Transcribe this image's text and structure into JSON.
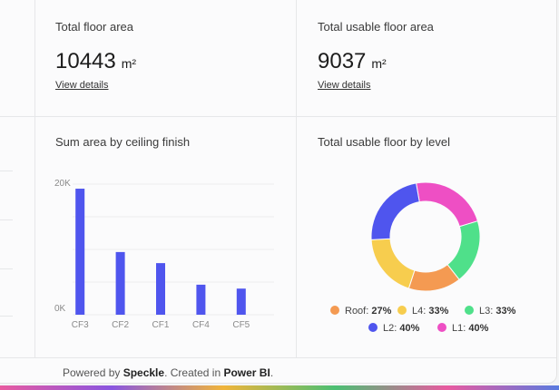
{
  "kpis": [
    {
      "label": "Total floor area",
      "value": "10443",
      "unit": "m²",
      "link": "View details"
    },
    {
      "label": "Total usable floor area",
      "value": "9037",
      "unit": "m²",
      "link": "View details"
    }
  ],
  "footer": {
    "prefix": "Powered by ",
    "brand": "Speckle",
    "middle": ". Created in ",
    "tool": "Power BI",
    "suffix": "."
  },
  "colors": {
    "bar": "#4f55ee",
    "roof": "#f49a52",
    "l4": "#f7cd4e",
    "l3": "#4fe08a",
    "l2": "#4f55ee",
    "l1": "#ee4fc4"
  },
  "chart_data": [
    {
      "type": "bar",
      "title": "Sum area by ceiling finish",
      "categories": [
        "CF3",
        "CF2",
        "CF1",
        "CF4",
        "CF5"
      ],
      "values": [
        19300,
        9600,
        7900,
        4600,
        4000
      ],
      "ylim": [
        0,
        20000
      ],
      "ytick_labels": [
        "0K",
        "20K"
      ],
      "grid": true
    },
    {
      "type": "pie",
      "variant": "donut",
      "title": "Total usable floor by level",
      "slices": [
        {
          "label": "L1",
          "value": 40,
          "display": "40%",
          "color": "#ee4fc4"
        },
        {
          "label": "L3",
          "value": 33,
          "display": "33%",
          "color": "#4fe08a"
        },
        {
          "label": "Roof",
          "value": 27,
          "display": "27%",
          "color": "#f49a52"
        },
        {
          "label": "L4",
          "value": 33,
          "display": "33%",
          "color": "#f7cd4e"
        },
        {
          "label": "L2",
          "value": 40,
          "display": "40%",
          "color": "#4f55ee"
        }
      ],
      "legend": [
        {
          "label": "Roof",
          "display": "27%",
          "color": "#f49a52"
        },
        {
          "label": "L4",
          "display": "33%",
          "color": "#f7cd4e"
        },
        {
          "label": "L3",
          "display": "33%",
          "color": "#4fe08a"
        },
        {
          "label": "L2",
          "display": "40%",
          "color": "#4f55ee"
        },
        {
          "label": "L1",
          "display": "40%",
          "color": "#ee4fc4"
        }
      ],
      "legend_position": "bottom"
    }
  ]
}
